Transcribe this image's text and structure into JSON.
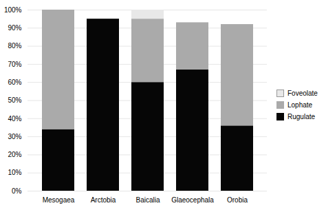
{
  "chart_data": {
    "type": "bar",
    "stacked": true,
    "categories": [
      "Mesogaea",
      "Arctobia",
      "Baicalia",
      "Glaeocephala",
      "Orobia"
    ],
    "series": [
      {
        "name": "Rugulate",
        "color": "#060606",
        "values": [
          34,
          95,
          60,
          67,
          36
        ]
      },
      {
        "name": "Lophate",
        "color": "#aaaaaa",
        "values": [
          66,
          0,
          35,
          26,
          56
        ]
      },
      {
        "name": "Foveolate",
        "color": "#e8e8e8",
        "values": [
          0,
          0,
          5,
          0,
          0
        ]
      }
    ],
    "ylim": [
      0,
      100
    ],
    "yticks": [
      {
        "value": 0,
        "label": "0%"
      },
      {
        "value": 10,
        "label": "10%"
      },
      {
        "value": 20,
        "label": "20%"
      },
      {
        "value": 30,
        "label": "30%"
      },
      {
        "value": 40,
        "label": "40%"
      },
      {
        "value": 50,
        "label": "50%"
      },
      {
        "value": 60,
        "label": "60%"
      },
      {
        "value": 70,
        "label": "70%"
      },
      {
        "value": 80,
        "label": "80%"
      },
      {
        "value": 90,
        "label": "90%"
      },
      {
        "value": 100,
        "label": "100%"
      }
    ],
    "grid": true,
    "legend": "right"
  }
}
